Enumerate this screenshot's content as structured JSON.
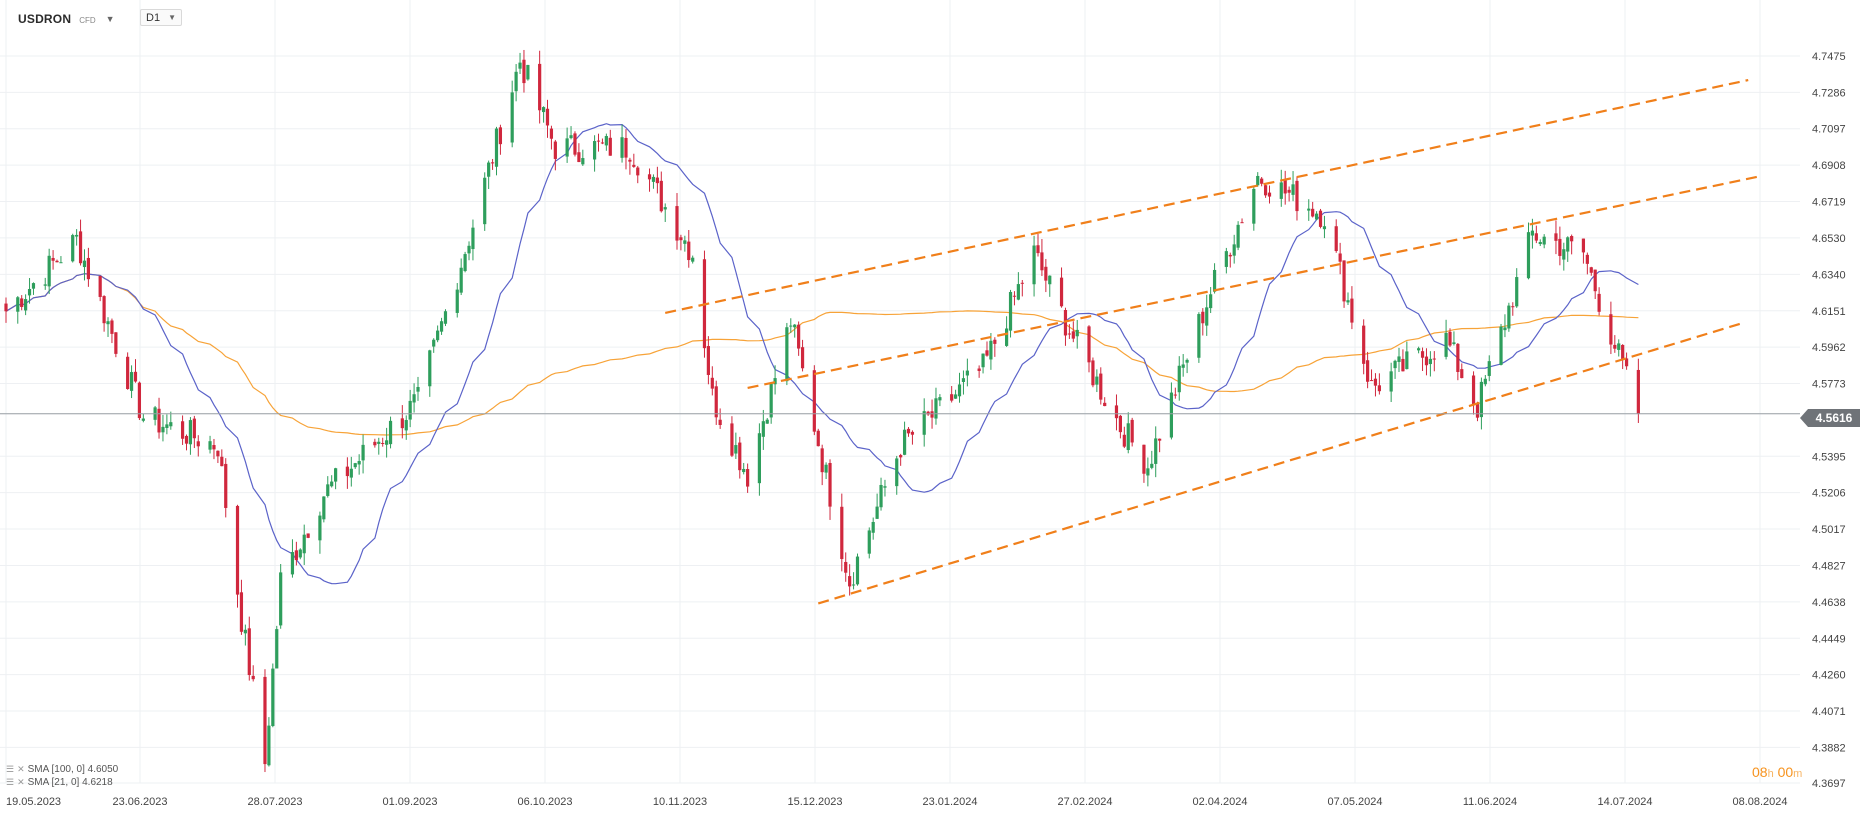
{
  "header": {
    "symbol": "USDRON",
    "badge": "CFD",
    "timeframe": "D1"
  },
  "timer": {
    "hours": "08",
    "h_unit": "h",
    "minutes": "00",
    "m_unit": "m"
  },
  "legend": [
    {
      "label": "SMA [100, 0] 4.6050"
    },
    {
      "label": "SMA [21, 0] 4.6218"
    }
  ],
  "current_price": "4.5616",
  "colors": {
    "bull": "#2e9e5c",
    "bear": "#d0273d",
    "sma100": "#f7a338",
    "sma21": "#5b63c9",
    "trendline": "#f07f1a",
    "current_line": "#9aa0a6"
  },
  "chart_data": {
    "type": "candlestick",
    "title": "",
    "ylim": [
      4.3697,
      4.7475
    ],
    "y_ticks": [
      "4.7475",
      "4.7286",
      "4.7097",
      "4.6908",
      "4.6719",
      "4.6530",
      "4.6340",
      "4.6151",
      "4.5962",
      "4.5773",
      "4.5616",
      "4.5395",
      "4.5206",
      "4.5017",
      "4.4827",
      "4.4638",
      "4.4449",
      "4.4260",
      "4.4071",
      "4.3882",
      "4.3697"
    ],
    "x_ticks": [
      "19.05.2023",
      "23.06.2023",
      "28.07.2023",
      "01.09.2023",
      "06.10.2023",
      "10.11.2023",
      "15.12.2023",
      "23.01.2024",
      "27.02.2024",
      "02.04.2024",
      "07.05.2024",
      "11.06.2024",
      "14.07.2024",
      "08.08.2024"
    ],
    "series": [
      {
        "name": "SMA [100, 0]",
        "last": 4.605
      },
      {
        "name": "SMA [21, 0]",
        "last": 4.6218
      }
    ],
    "candles_summary": {
      "start": "19.05.2023",
      "approx_path": [
        [
          "19.05.2023",
          4.615
        ],
        [
          "06.06.2023",
          4.652
        ],
        [
          "23.06.2023",
          4.56
        ],
        [
          "12.07.2023",
          4.545
        ],
        [
          "18.07.2023",
          4.455
        ],
        [
          "24.07.2023",
          4.38
        ],
        [
          "28.07.2023",
          4.475
        ],
        [
          "08.08.2023",
          4.52
        ],
        [
          "01.09.2023",
          4.568
        ],
        [
          "15.09.2023",
          4.66
        ],
        [
          "27.09.2023",
          4.745
        ],
        [
          "06.10.2023",
          4.7
        ],
        [
          "25.10.2023",
          4.7
        ],
        [
          "10.11.2023",
          4.645
        ],
        [
          "15.11.2023",
          4.57
        ],
        [
          "24.11.2023",
          4.53
        ],
        [
          "05.12.2023",
          4.61
        ],
        [
          "15.12.2023",
          4.52
        ],
        [
          "20.12.2023",
          4.475
        ],
        [
          "02.01.2024",
          4.545
        ],
        [
          "23.01.2024",
          4.585
        ],
        [
          "05.02.2024",
          4.645
        ],
        [
          "14.02.2024",
          4.605
        ],
        [
          "27.02.2024",
          4.555
        ],
        [
          "05.03.2024",
          4.535
        ],
        [
          "21.03.2024",
          4.625
        ],
        [
          "02.04.2024",
          4.685
        ],
        [
          "19.04.2024",
          4.665
        ],
        [
          "01.05.2024",
          4.575
        ],
        [
          "20.05.2024",
          4.6
        ],
        [
          "28.05.2024",
          4.565
        ],
        [
          "11.06.2024",
          4.655
        ],
        [
          "24.06.2024",
          4.645
        ],
        [
          "08.07.2024",
          4.5616
        ]
      ]
    },
    "channel_lines": [
      {
        "from": [
          "03.11.2023",
          4.614
        ],
        "to": [
          "05.08.2024",
          4.735
        ]
      },
      {
        "from": [
          "24.11.2023",
          4.575
        ],
        "to": [
          "08.08.2024",
          4.685
        ]
      },
      {
        "from": [
          "12.12.2023",
          4.463
        ],
        "to": [
          "04.08.2024",
          4.609
        ]
      }
    ],
    "current_price": 4.5616,
    "grid": true,
    "axis_position": "right"
  }
}
